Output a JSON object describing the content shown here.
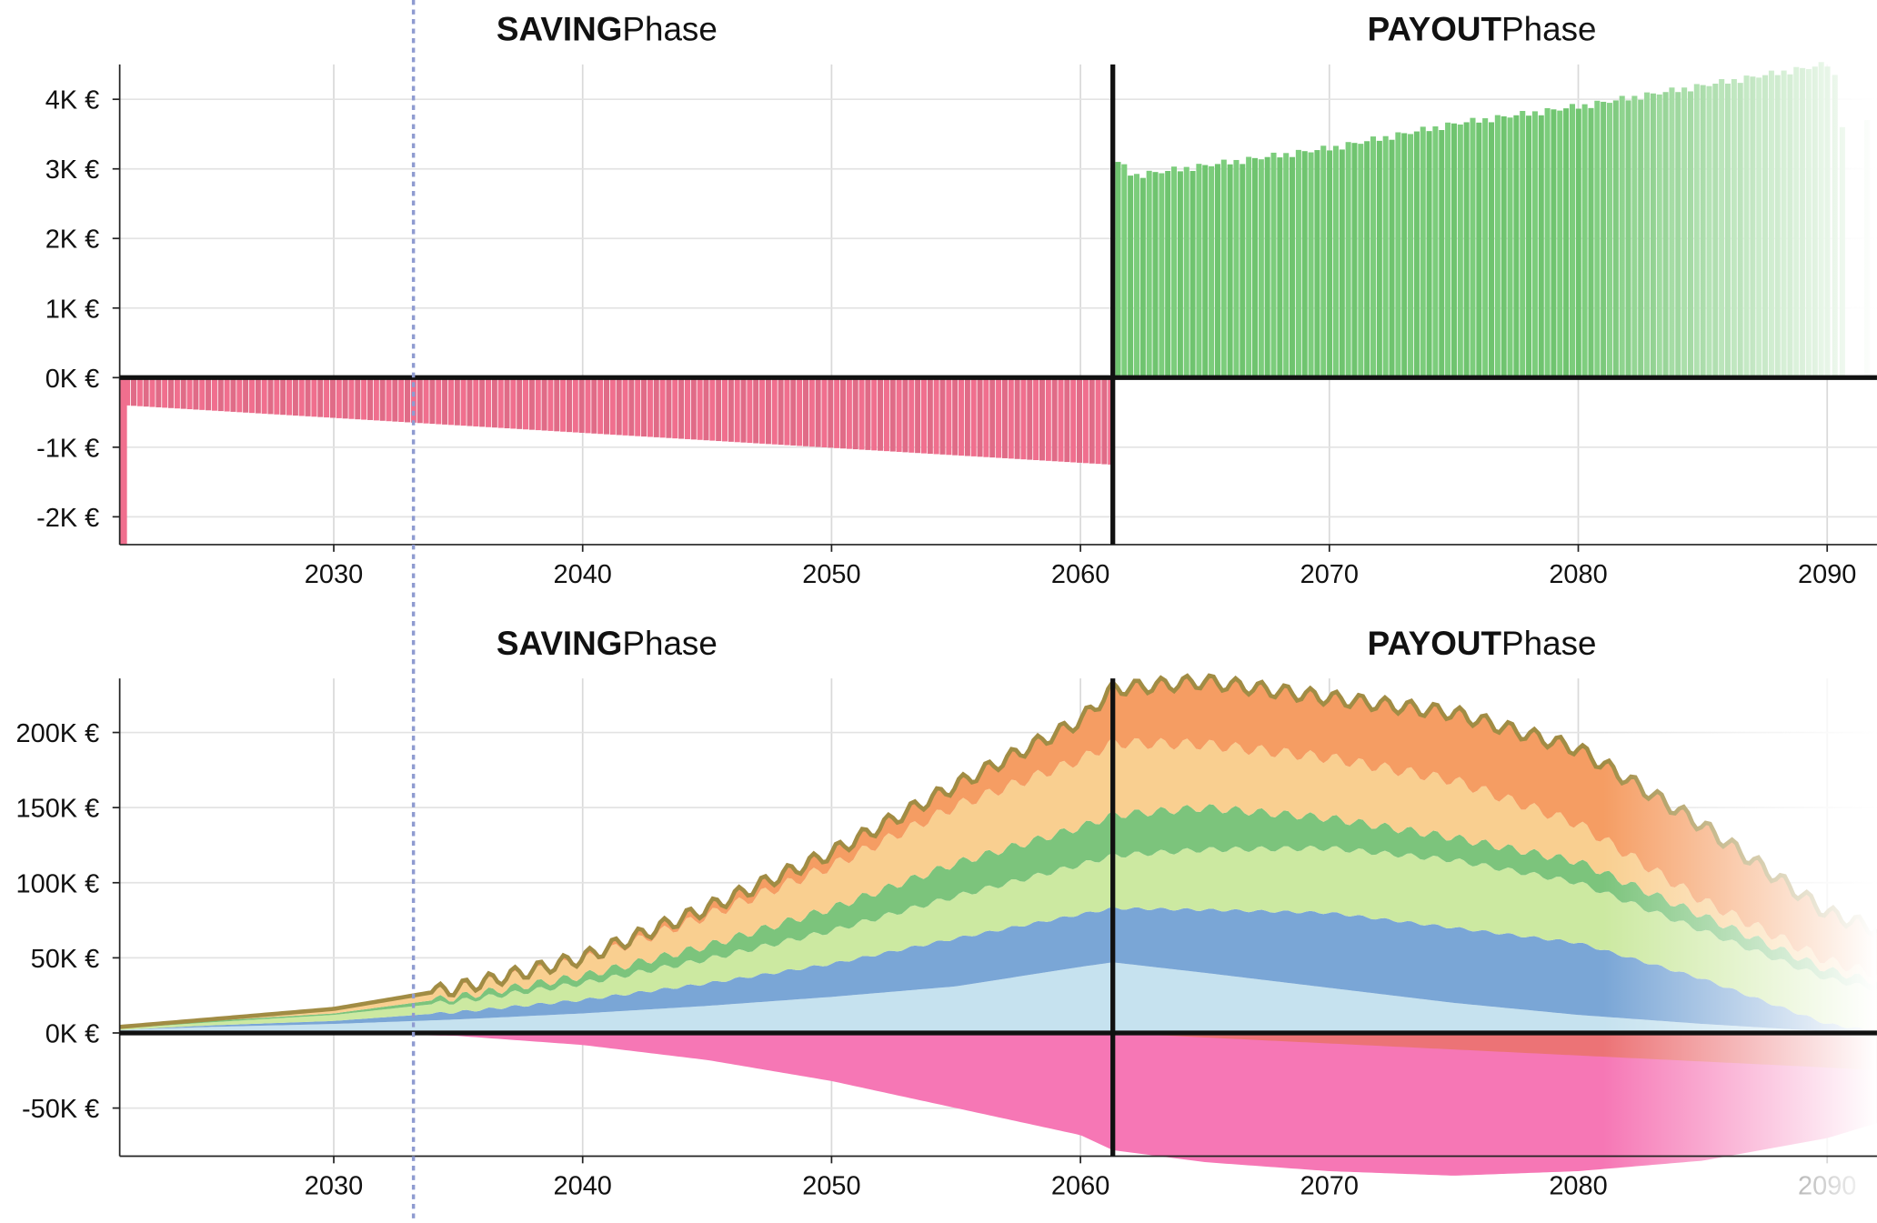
{
  "chart_data": [
    {
      "type": "bar",
      "phases": [
        {
          "bold": "SAVING",
          "regular": "Phase"
        },
        {
          "bold": "PAYOUT",
          "regular": "Phase"
        }
      ],
      "x_ticks": [
        "2030",
        "2040",
        "2050",
        "2060",
        "2070",
        "2080",
        "2090"
      ],
      "y_ticks": [
        "4K €",
        "3K €",
        "2K €",
        "1K €",
        "0K €",
        "-1K €",
        "-2K €"
      ],
      "xlim": [
        2021.4,
        2092.0
      ],
      "ylim": [
        -2.4,
        4.5
      ],
      "current_year_marker": 2033.2,
      "phase_boundary": 2061.3,
      "saving_contributions": {
        "unit": "K €",
        "initial_deposit": {
          "year": 2021.5,
          "value": -2.4
        },
        "start": {
          "year": 2021.6,
          "value": -0.4
        },
        "end": {
          "year": 2061.1,
          "value": -1.25
        },
        "steps_per_year": 4,
        "color": "#f06f8e"
      },
      "payout_withdrawals": {
        "unit": "K €",
        "points": [
          {
            "year": 2061.4,
            "value": 3.1
          },
          {
            "year": 2062.0,
            "value": 2.9
          },
          {
            "year": 2065.0,
            "value": 3.05
          },
          {
            "year": 2070.0,
            "value": 3.3
          },
          {
            "year": 2075.0,
            "value": 3.65
          },
          {
            "year": 2080.0,
            "value": 3.9
          },
          {
            "year": 2085.0,
            "value": 4.2
          },
          {
            "year": 2089.9,
            "value": 4.5
          }
        ],
        "tail": [
          {
            "year": 2090.2,
            "value": 4.35
          },
          {
            "year": 2090.5,
            "value": 3.6
          },
          {
            "year": 2091.5,
            "value": 3.7
          }
        ],
        "steps_per_year": 4,
        "color": "#6fc46f"
      }
    },
    {
      "type": "area",
      "phases": [
        {
          "bold": "SAVING",
          "regular": "Phase"
        },
        {
          "bold": "PAYOUT",
          "regular": "Phase"
        }
      ],
      "x_ticks": [
        "2030",
        "2040",
        "2050",
        "2060",
        "2070",
        "2080",
        "2090"
      ],
      "y_ticks": [
        "200K €",
        "150K €",
        "100K €",
        "50K €",
        "0K €",
        "-50K €"
      ],
      "xlim": [
        2021.4,
        2092.0
      ],
      "ylim": [
        -82,
        236
      ],
      "current_year_marker": 2033.2,
      "phase_boundary": 2061.3,
      "years": [
        2021.4,
        2025,
        2030,
        2035,
        2040,
        2045,
        2050,
        2055,
        2060,
        2061.3,
        2065,
        2070,
        2075,
        2080,
        2085,
        2090,
        2092
      ],
      "series": [
        {
          "values": [
            2,
            4,
            6,
            9,
            13,
            18,
            24,
            31,
            44,
            47,
            40,
            30,
            20,
            12,
            6,
            1,
            0
          ]
        },
        {
          "values": [
            0,
            1,
            2,
            5,
            9,
            15,
            22,
            32,
            35,
            36,
            42,
            50,
            50,
            48,
            30,
            5,
            1
          ]
        },
        {
          "values": [
            1,
            2,
            4,
            7,
            11,
            16,
            22,
            28,
            33,
            35,
            40,
            43,
            45,
            40,
            32,
            30,
            28
          ]
        },
        {
          "values": [
            0,
            1,
            1,
            3,
            5,
            9,
            15,
            22,
            25,
            27,
            28,
            20,
            15,
            14,
            10,
            6,
            5
          ]
        },
        {
          "values": [
            1,
            1,
            3,
            5,
            10,
            20,
            28,
            38,
            45,
            48,
            42,
            40,
            38,
            25,
            10,
            6,
            5
          ]
        },
        {
          "values": [
            0,
            0,
            0,
            1,
            2,
            5,
            9,
            14,
            26,
            36,
            42,
            40,
            45,
            50,
            50,
            32,
            30
          ]
        }
      ],
      "negative_series": [
        {
          "values": [
            0,
            0,
            0,
            -2,
            -8,
            -18,
            -32,
            -50,
            -68,
            -78,
            -86,
            -92,
            -95,
            -92,
            -85,
            -70,
            -60
          ]
        },
        {
          "values": [
            0,
            0,
            0,
            0,
            0,
            0,
            0,
            0,
            0,
            0,
            -3,
            -7,
            -11,
            -15,
            -19,
            -23,
            -25
          ]
        }
      ],
      "series_colors": [
        "#c6e2ef",
        "#7aa6d6",
        "#cce9a1",
        "#7cc47c",
        "#f9cf90",
        "#f59d63"
      ],
      "negative_colors": [
        "#f677b5",
        "#ec7376"
      ],
      "total_line_color": "#a18c44"
    }
  ]
}
